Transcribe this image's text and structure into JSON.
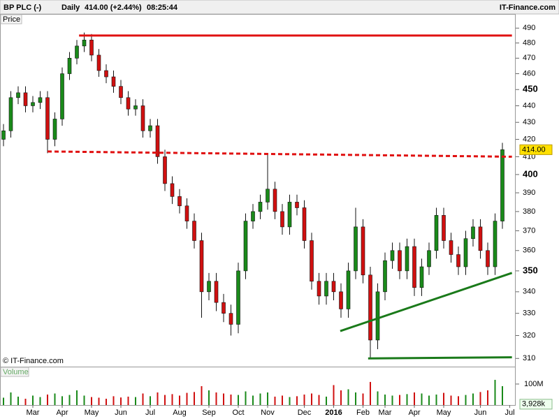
{
  "header": {
    "symbol": "BP PLC (-)",
    "period": "Daily",
    "quote": "414.00 (+2.44%)",
    "time": "08:25:44",
    "brand": "IT-Finance.com"
  },
  "chart_data": {
    "type": "candlestick",
    "panel_label": "Price",
    "copyright": "© IT-Finance.com",
    "log_scale": true,
    "up_color": "#1a8a1a",
    "down_color": "#d01010",
    "categories": [
      null,
      null,
      null,
      null,
      "Mar",
      null,
      null,
      null,
      "Apr",
      null,
      null,
      null,
      "May",
      null,
      null,
      null,
      "Jun",
      null,
      null,
      null,
      "Jul",
      null,
      null,
      null,
      "Aug",
      null,
      null,
      null,
      "Sep",
      null,
      null,
      null,
      "Oct",
      null,
      null,
      null,
      "Nov",
      null,
      null,
      null,
      null,
      "Dec",
      null,
      null,
      null,
      "2016",
      null,
      null,
      null,
      "Feb",
      null,
      null,
      "Mar",
      null,
      null,
      null,
      "Apr",
      null,
      null,
      null,
      "May",
      null,
      null,
      null,
      null,
      "Jun",
      null,
      null,
      null,
      "Jul"
    ],
    "open": [
      420,
      425,
      445,
      448,
      440,
      442,
      445,
      420,
      432,
      460,
      470,
      478,
      482,
      472,
      462,
      458,
      452,
      445,
      438,
      440,
      425,
      428,
      410,
      395,
      388,
      383,
      375,
      365,
      340,
      345,
      335,
      330,
      325,
      350,
      375,
      380,
      385,
      392,
      380,
      372,
      385,
      382,
      365,
      345,
      338,
      345,
      340,
      332,
      350,
      372,
      348,
      318,
      340,
      355,
      360,
      350,
      362,
      342,
      352,
      360,
      378,
      365,
      358,
      352,
      366,
      372,
      360,
      352,
      375,
      null
    ],
    "high": [
      429,
      449,
      452,
      452,
      446,
      449,
      449,
      436,
      464,
      474,
      482,
      487,
      486,
      476,
      466,
      462,
      456,
      449,
      444,
      444,
      432,
      432,
      414,
      399,
      392,
      387,
      379,
      369,
      349,
      349,
      339,
      334,
      354,
      379,
      384,
      389,
      412,
      396,
      384,
      389,
      389,
      386,
      369,
      349,
      349,
      349,
      344,
      354,
      382,
      376,
      352,
      344,
      359,
      364,
      364,
      366,
      366,
      356,
      364,
      382,
      382,
      369,
      362,
      370,
      376,
      376,
      364,
      379,
      418,
      null
    ],
    "low": [
      416,
      421,
      441,
      436,
      436,
      438,
      412,
      416,
      428,
      456,
      466,
      474,
      468,
      458,
      454,
      448,
      441,
      434,
      434,
      421,
      421,
      406,
      391,
      384,
      379,
      371,
      361,
      328,
      336,
      331,
      326,
      320,
      321,
      346,
      371,
      376,
      381,
      376,
      368,
      368,
      378,
      361,
      341,
      334,
      334,
      336,
      328,
      328,
      346,
      344,
      310,
      314,
      336,
      351,
      346,
      346,
      338,
      338,
      348,
      356,
      361,
      354,
      348,
      348,
      362,
      356,
      348,
      348,
      371,
      null
    ],
    "close": [
      425,
      445,
      448,
      440,
      442,
      445,
      420,
      432,
      460,
      470,
      478,
      482,
      472,
      462,
      458,
      452,
      445,
      438,
      440,
      425,
      428,
      410,
      395,
      388,
      383,
      375,
      365,
      340,
      345,
      335,
      330,
      325,
      350,
      375,
      380,
      385,
      392,
      380,
      372,
      385,
      382,
      365,
      345,
      338,
      345,
      340,
      332,
      350,
      372,
      348,
      318,
      340,
      355,
      360,
      350,
      362,
      342,
      352,
      360,
      378,
      365,
      358,
      352,
      366,
      372,
      360,
      352,
      375,
      414,
      null
    ],
    "ylim": [
      306.5,
      492.5
    ],
    "yticks": [
      310,
      320,
      330,
      340,
      350,
      360,
      370,
      380,
      390,
      400,
      410,
      420,
      430,
      440,
      450,
      460,
      470,
      480,
      490
    ],
    "last": {
      "value": 414,
      "label": "414.00"
    },
    "trendlines": [
      {
        "color": "#e01010",
        "dashed": false,
        "x": [
          10.3,
          69.3
        ],
        "y": [
          485,
          485
        ]
      },
      {
        "color": "#e01010",
        "dashed": true,
        "x": [
          6.0,
          69.3
        ],
        "y": [
          413,
          410
        ]
      },
      {
        "color": "#1a7a1a",
        "dashed": false,
        "x": [
          45.9,
          69.3
        ],
        "y": [
          322,
          349
        ]
      },
      {
        "color": "#1a7a1a",
        "dashed": false,
        "x": [
          49.7,
          69.3
        ],
        "y": [
          310,
          310.5
        ]
      }
    ],
    "volume": {
      "label": "Volume",
      "ylim": [
        0,
        173
      ],
      "yticks": [
        {
          "value": 100,
          "label": "100M"
        }
      ],
      "last": {
        "value": 3.928,
        "label": "3,928k"
      },
      "values": [
        35,
        60,
        40,
        30,
        45,
        38,
        50,
        55,
        42,
        48,
        70,
        45,
        38,
        35,
        30,
        42,
        36,
        40,
        38,
        55,
        42,
        60,
        48,
        52,
        45,
        58,
        62,
        90,
        70,
        60,
        55,
        50,
        48,
        65,
        45,
        55,
        60,
        40,
        45,
        38,
        42,
        50,
        55,
        48,
        40,
        95,
        70,
        75,
        60,
        55,
        110,
        65,
        50,
        45,
        48,
        52,
        60,
        55,
        45,
        50,
        58,
        45,
        42,
        48,
        55,
        62,
        70,
        120,
        90,
        null
      ]
    }
  }
}
